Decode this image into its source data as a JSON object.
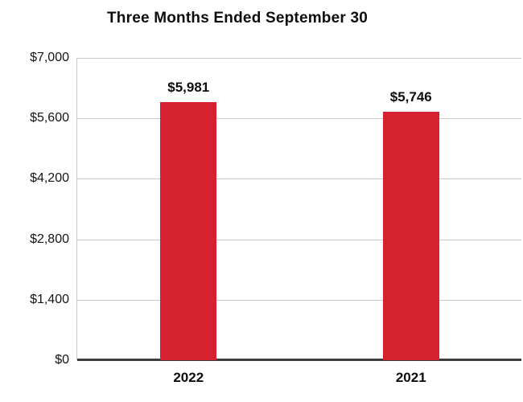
{
  "chart_data": {
    "type": "bar",
    "title": "Three Months Ended September 30",
    "categories": [
      "2022",
      "2021"
    ],
    "values": [
      5981,
      5746
    ],
    "value_labels": [
      "$5,981",
      "$5,746"
    ],
    "ylim": [
      0,
      7000
    ],
    "yticks": [
      0,
      1400,
      2800,
      4200,
      5600,
      7000
    ],
    "ytick_labels": [
      "$0",
      "$1,400",
      "$2,800",
      "$4,200",
      "$5,600",
      "$7,000"
    ],
    "bar_color": "#d6222f",
    "grid": true,
    "legend": "none",
    "xlabel": "",
    "ylabel": ""
  }
}
